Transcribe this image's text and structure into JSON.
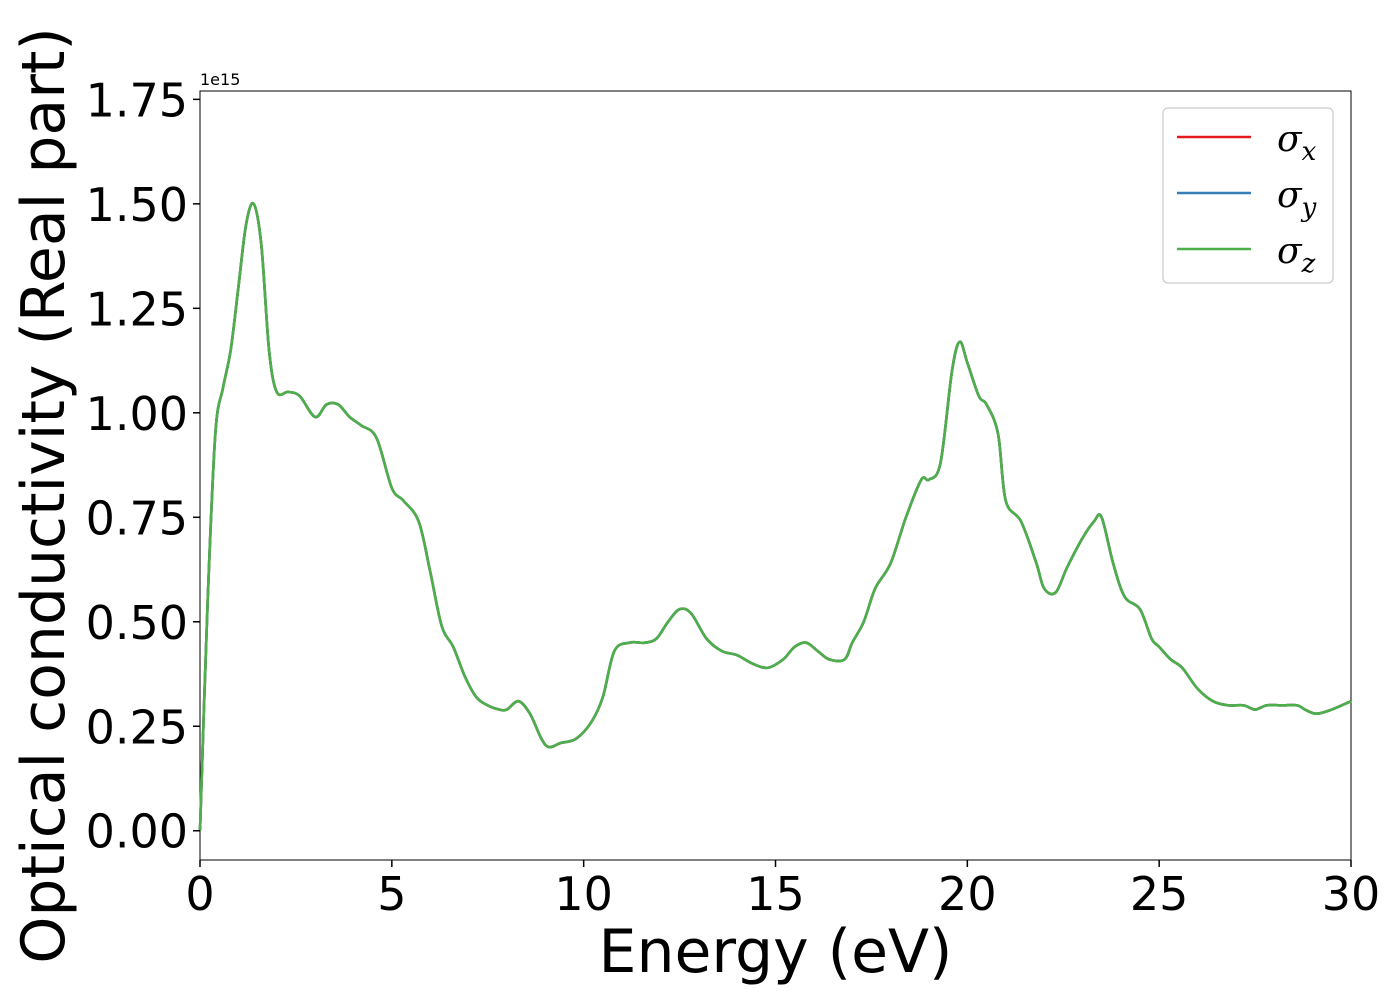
{
  "chart_data": {
    "type": "line",
    "xlabel": "Energy (eV)",
    "ylabel": "Optical conductivity (Real part)",
    "y_offset_label": "1e15",
    "xlim": [
      0,
      30
    ],
    "ylim": [
      -0.07,
      1.77
    ],
    "y_scale_factor": 1000000000000000.0,
    "x_ticks": [
      0,
      5,
      10,
      15,
      20,
      25,
      30
    ],
    "x_tick_labels": [
      "0",
      "5",
      "10",
      "15",
      "20",
      "25",
      "30"
    ],
    "y_ticks": [
      0.0,
      0.25,
      0.5,
      0.75,
      1.0,
      1.25,
      1.5,
      1.75
    ],
    "y_tick_labels": [
      "0.00",
      "0.25",
      "0.50",
      "0.75",
      "1.00",
      "1.25",
      "1.50",
      "1.75"
    ],
    "grid": false,
    "legend_position": "top-right",
    "x": [
      0,
      0.2,
      0.4,
      0.6,
      0.8,
      1.0,
      1.2,
      1.4,
      1.6,
      1.8,
      2.0,
      2.3,
      2.6,
      3.0,
      3.3,
      3.6,
      3.9,
      4.2,
      4.6,
      5.0,
      5.3,
      5.7,
      6.0,
      6.3,
      6.6,
      6.9,
      7.2,
      7.5,
      7.8,
      8.0,
      8.3,
      8.6,
      8.9,
      9.1,
      9.4,
      9.8,
      10.2,
      10.5,
      10.8,
      11.2,
      11.6,
      11.9,
      12.2,
      12.5,
      12.8,
      13.2,
      13.6,
      14.0,
      14.4,
      14.8,
      15.2,
      15.5,
      15.8,
      16.1,
      16.4,
      16.8,
      17.0,
      17.3,
      17.6,
      18.0,
      18.4,
      18.8,
      19.0,
      19.3,
      19.6,
      19.8,
      20.0,
      20.3,
      20.5,
      20.8,
      21.0,
      21.4,
      21.8,
      22.0,
      22.3,
      22.6,
      23.0,
      23.3,
      23.5,
      23.8,
      24.1,
      24.5,
      24.8,
      25.0,
      25.3,
      25.6,
      26.0,
      26.4,
      26.8,
      27.2,
      27.5,
      27.8,
      28.2,
      28.6,
      28.8,
      29.1,
      29.5,
      30.0
    ],
    "series": [
      {
        "name": "σx",
        "legend_base": "σ",
        "legend_sub": "x",
        "color": "#e41a1c",
        "values": [
          0.0,
          0.55,
          0.95,
          1.06,
          1.15,
          1.3,
          1.45,
          1.5,
          1.4,
          1.15,
          1.05,
          1.05,
          1.04,
          0.99,
          1.02,
          1.02,
          0.99,
          0.97,
          0.94,
          0.82,
          0.79,
          0.74,
          0.62,
          0.49,
          0.44,
          0.37,
          0.32,
          0.3,
          0.29,
          0.29,
          0.31,
          0.28,
          0.22,
          0.2,
          0.21,
          0.22,
          0.26,
          0.32,
          0.43,
          0.45,
          0.45,
          0.46,
          0.5,
          0.53,
          0.52,
          0.46,
          0.43,
          0.42,
          0.4,
          0.39,
          0.41,
          0.44,
          0.45,
          0.43,
          0.41,
          0.41,
          0.45,
          0.5,
          0.58,
          0.64,
          0.75,
          0.84,
          0.84,
          0.88,
          1.1,
          1.17,
          1.12,
          1.04,
          1.02,
          0.95,
          0.79,
          0.74,
          0.64,
          0.58,
          0.57,
          0.63,
          0.7,
          0.74,
          0.75,
          0.64,
          0.56,
          0.53,
          0.46,
          0.44,
          0.41,
          0.39,
          0.34,
          0.31,
          0.3,
          0.3,
          0.29,
          0.3,
          0.3,
          0.3,
          0.29,
          0.28,
          0.29,
          0.31
        ]
      },
      {
        "name": "σy",
        "legend_base": "σ",
        "legend_sub": "y",
        "color": "#377eb8",
        "values": [
          0.0,
          0.55,
          0.95,
          1.06,
          1.15,
          1.3,
          1.45,
          1.5,
          1.4,
          1.15,
          1.05,
          1.05,
          1.04,
          0.99,
          1.02,
          1.02,
          0.99,
          0.97,
          0.94,
          0.82,
          0.79,
          0.74,
          0.62,
          0.49,
          0.44,
          0.37,
          0.32,
          0.3,
          0.29,
          0.29,
          0.31,
          0.28,
          0.22,
          0.2,
          0.21,
          0.22,
          0.26,
          0.32,
          0.43,
          0.45,
          0.45,
          0.46,
          0.5,
          0.53,
          0.52,
          0.46,
          0.43,
          0.42,
          0.4,
          0.39,
          0.41,
          0.44,
          0.45,
          0.43,
          0.41,
          0.41,
          0.45,
          0.5,
          0.58,
          0.64,
          0.75,
          0.84,
          0.84,
          0.88,
          1.1,
          1.17,
          1.12,
          1.04,
          1.02,
          0.95,
          0.79,
          0.74,
          0.64,
          0.58,
          0.57,
          0.63,
          0.7,
          0.74,
          0.75,
          0.64,
          0.56,
          0.53,
          0.46,
          0.44,
          0.41,
          0.39,
          0.34,
          0.31,
          0.3,
          0.3,
          0.29,
          0.3,
          0.3,
          0.3,
          0.29,
          0.28,
          0.29,
          0.31
        ]
      },
      {
        "name": "σz",
        "legend_base": "σ",
        "legend_sub": "z",
        "color": "#4daf4a",
        "values": [
          0.0,
          0.55,
          0.95,
          1.06,
          1.15,
          1.3,
          1.45,
          1.5,
          1.4,
          1.15,
          1.05,
          1.05,
          1.04,
          0.99,
          1.02,
          1.02,
          0.99,
          0.97,
          0.94,
          0.82,
          0.79,
          0.74,
          0.62,
          0.49,
          0.44,
          0.37,
          0.32,
          0.3,
          0.29,
          0.29,
          0.31,
          0.28,
          0.22,
          0.2,
          0.21,
          0.22,
          0.26,
          0.32,
          0.43,
          0.45,
          0.45,
          0.46,
          0.5,
          0.53,
          0.52,
          0.46,
          0.43,
          0.42,
          0.4,
          0.39,
          0.41,
          0.44,
          0.45,
          0.43,
          0.41,
          0.41,
          0.45,
          0.5,
          0.58,
          0.64,
          0.75,
          0.84,
          0.84,
          0.88,
          1.1,
          1.17,
          1.12,
          1.04,
          1.02,
          0.95,
          0.79,
          0.74,
          0.64,
          0.58,
          0.57,
          0.63,
          0.7,
          0.74,
          0.75,
          0.64,
          0.56,
          0.53,
          0.46,
          0.44,
          0.41,
          0.39,
          0.34,
          0.31,
          0.3,
          0.3,
          0.29,
          0.3,
          0.3,
          0.3,
          0.29,
          0.28,
          0.29,
          0.31
        ]
      }
    ]
  }
}
